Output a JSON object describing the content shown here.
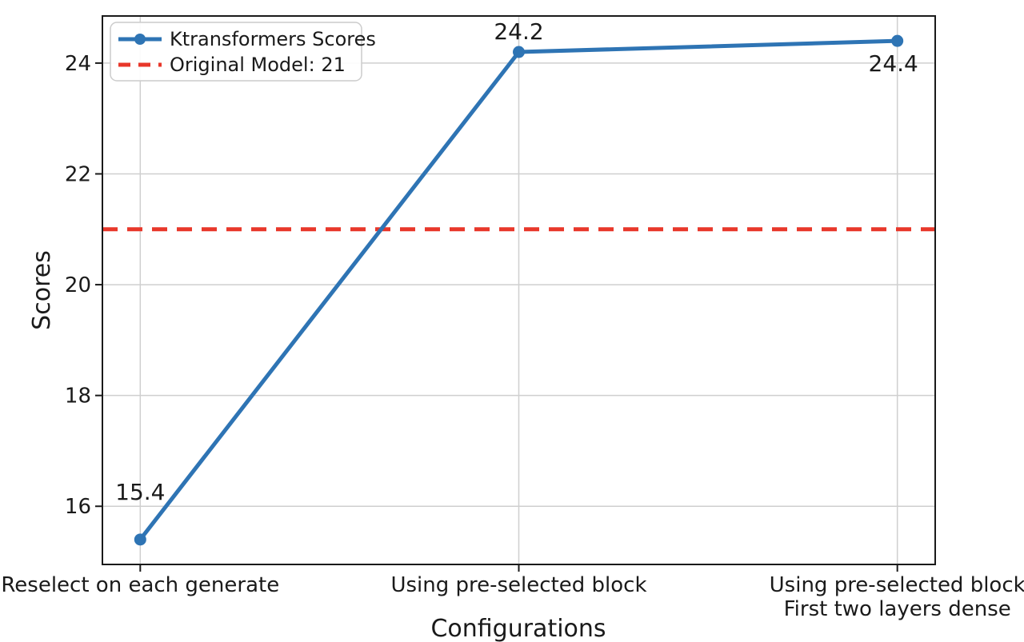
{
  "chart_data": {
    "type": "line",
    "title": "",
    "xlabel": "Configurations",
    "ylabel": "Scores",
    "categories": [
      "Reselect on each generate",
      "Using pre-selected block",
      "Using pre-selected block\nFirst two layers dense"
    ],
    "series": [
      {
        "name": "Ktransformers Scores",
        "values": [
          15.4,
          24.2,
          24.4
        ]
      }
    ],
    "point_labels": [
      "15.4",
      "24.2",
      "24.4"
    ],
    "hline": {
      "label": "Original Model: 21",
      "value": 21
    },
    "yticks": [
      16,
      18,
      20,
      22,
      24
    ],
    "ylim": [
      14.95,
      24.85
    ],
    "xlim": [
      -0.1,
      2.1
    ],
    "grid": true,
    "legend_position": "upper-left",
    "colors": {
      "line": "#2e74b4",
      "hline": "#e8372a",
      "grid": "#cfcfcf",
      "axis": "#1a1a1a",
      "text": "#1a1a1a",
      "legend_border": "#cccccc",
      "background": "#ffffff"
    }
  }
}
